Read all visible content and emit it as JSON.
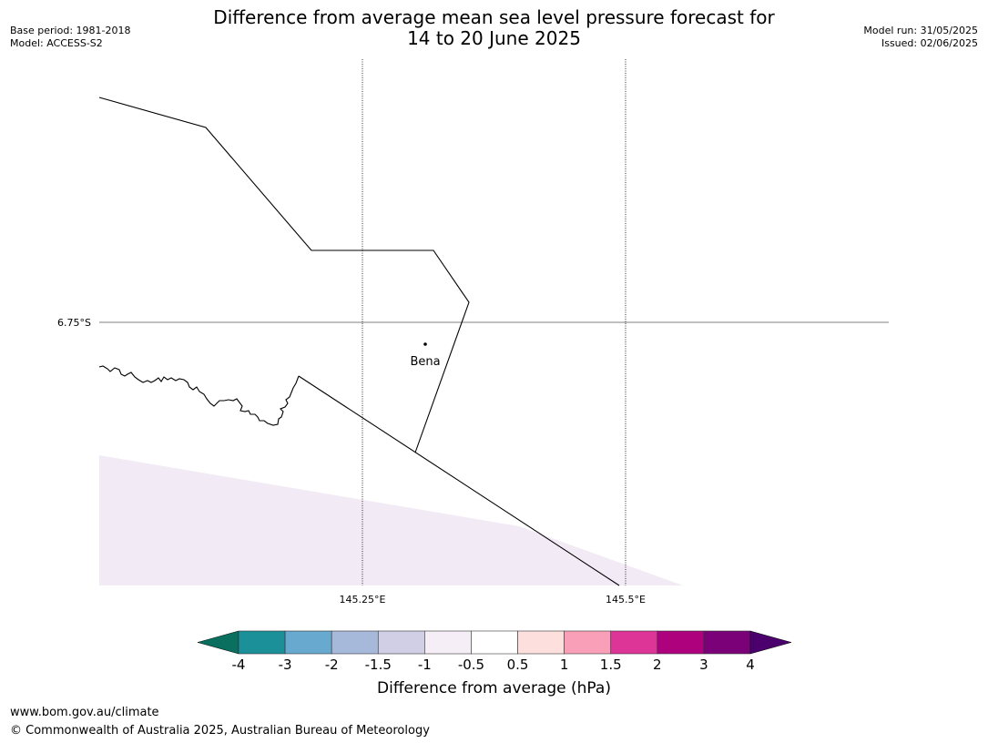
{
  "title": {
    "line1": "Difference from average mean sea level pressure forecast for",
    "line2": "14 to 20 June 2025"
  },
  "meta_left": {
    "base_period": "Base period: 1981-2018",
    "model": "Model: ACCESS-S2"
  },
  "meta_right": {
    "model_run": "Model run: 31/05/2025",
    "issued": "Issued: 02/06/2025"
  },
  "map": {
    "lat_label": "6.75°S",
    "lon_labels": [
      "145.25°E",
      "145.5°E"
    ],
    "place": "Bena"
  },
  "colorbar": {
    "label": "Difference from average (hPa)",
    "ticks": [
      "-4",
      "-3",
      "-2",
      "-1.5",
      "-1",
      "-0.5",
      "0.5",
      "1",
      "1.5",
      "2",
      "3",
      "4"
    ],
    "under_color": "#0b6f60",
    "over_color": "#4b006e",
    "colors": [
      "#1b9098",
      "#67a9cf",
      "#a6b9da",
      "#d0cfe6",
      "#f5eef7",
      "#ffffff",
      "#fde0dd",
      "#f9a0b8",
      "#dd3497",
      "#ae017e",
      "#7a0177"
    ],
    "map_fill_color": "#f2eaf4"
  },
  "footer": {
    "url": "www.bom.gov.au/climate",
    "copyright": "© Commonwealth of Australia 2025, Australian Bureau of Meteorology"
  }
}
